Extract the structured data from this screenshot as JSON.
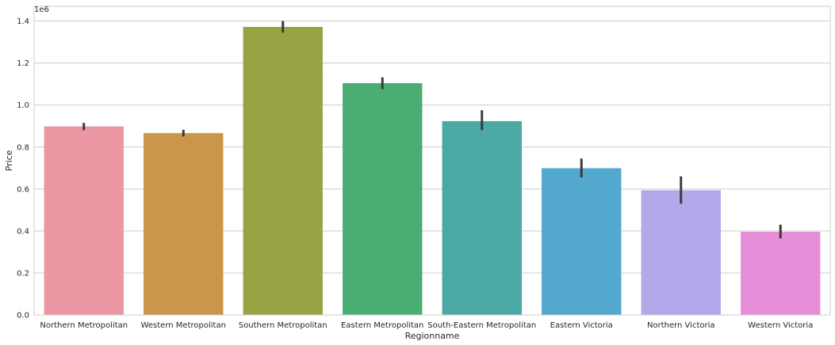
{
  "chart_data": {
    "type": "bar",
    "title": "",
    "xlabel": "Regionname",
    "ylabel": "Price",
    "scale_offset_label": "1e6",
    "ylim": [
      0,
      1.47
    ],
    "yticks": [
      "0.0",
      "0.2",
      "0.4",
      "0.6",
      "0.8",
      "1.0",
      "1.2",
      "1.4"
    ],
    "grid": true,
    "categories": [
      "Northern Metropolitan",
      "Western Metropolitan",
      "Southern Metropolitan",
      "Eastern Metropolitan",
      "South-Eastern Metropolitan",
      "Eastern Victoria",
      "Northern Victoria",
      "Western Victoria"
    ],
    "values": [
      0.898,
      0.866,
      1.372,
      1.104,
      0.923,
      0.699,
      0.594,
      0.396
    ],
    "error_low": [
      0.88,
      0.85,
      1.345,
      1.075,
      0.88,
      0.655,
      0.53,
      0.365
    ],
    "error_high": [
      0.915,
      0.882,
      1.4,
      1.132,
      0.975,
      0.745,
      0.66,
      0.43
    ],
    "colors": [
      "#ea96a3",
      "#c9964a",
      "#99a344",
      "#4aae72",
      "#4aa9a3",
      "#52a8cd",
      "#b4a7ea",
      "#e78ed9"
    ],
    "error_color": "#3b3b3b",
    "grid_color": "#cccccc"
  }
}
